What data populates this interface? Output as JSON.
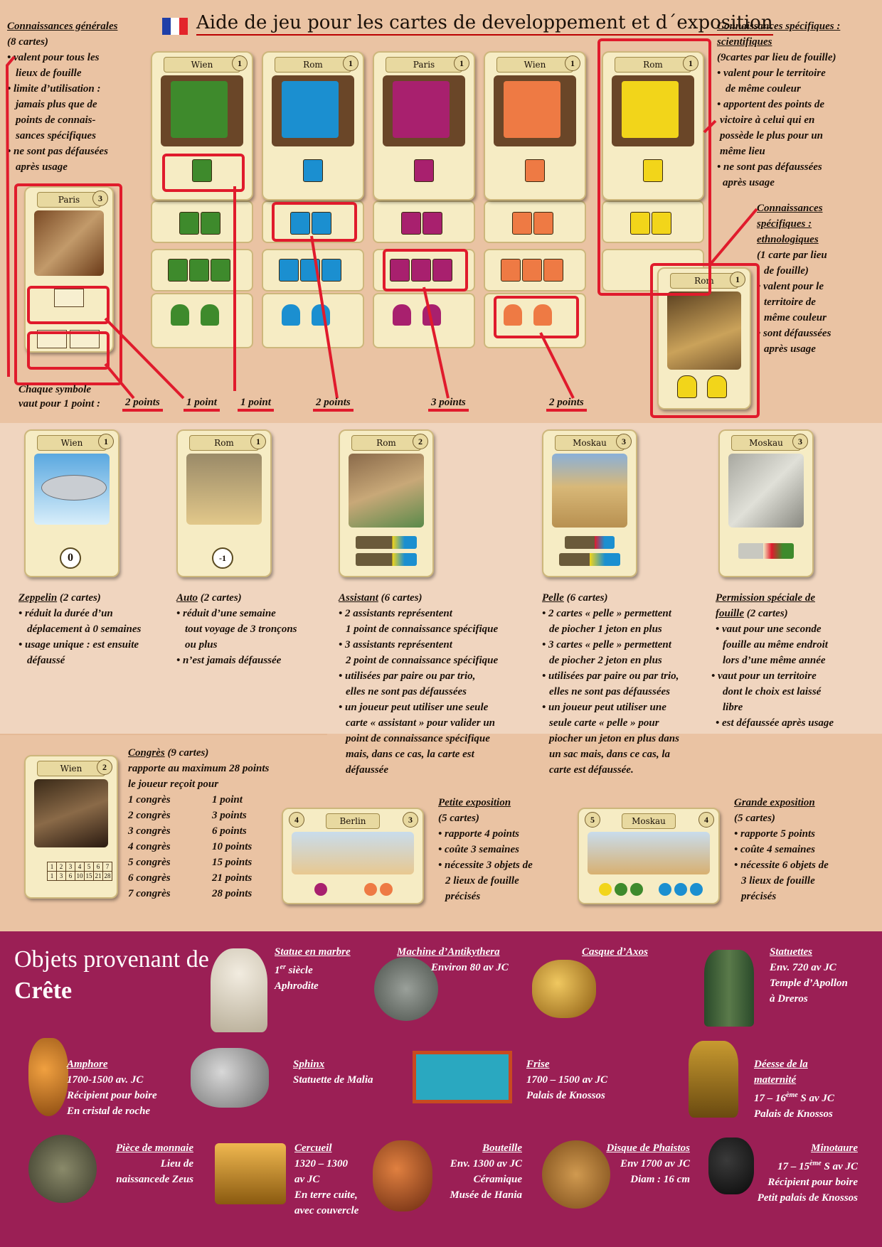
{
  "header": {
    "title": "Aide de jeu pour les cartes de developpement et d´exposition"
  },
  "general": {
    "title": "Connaissances générales",
    "count": "(8 cartes)",
    "lines": [
      "• valent pour tous les",
      "lieux de fouille",
      "• limite d’utilisation :",
      "jamais plus que de",
      "points de connais-",
      "sances spécifiques",
      "• ne sont pas défausées",
      "après usage"
    ]
  },
  "scientific": {
    "title": "Connaissances spécifiques :",
    "title2": "scientifiques",
    "lines": [
      "(9cartes par lieu de fouille)",
      "• valent pour le territoire",
      "de même couleur",
      "• apportent des points de",
      "victoire à celui qui en",
      "possède le plus pour un",
      "même lieu",
      "• ne sont pas défaussées",
      "après usage"
    ]
  },
  "ethno": {
    "lines": [
      "Connaissances",
      "spécifiques :",
      "ethnologiques",
      "(1 carte par lieu",
      "de fouille)",
      "• valent pour le",
      "territoire de",
      "même couleur",
      "• sont défaussées",
      "après usage"
    ]
  },
  "cards_top": {
    "paris": {
      "name": "Paris",
      "num": "3"
    },
    "c1": {
      "name": "Wien",
      "num": "1"
    },
    "c2": {
      "name": "Rom",
      "num": "1"
    },
    "c3": {
      "name": "Paris",
      "num": "1"
    },
    "c4": {
      "name": "Wien",
      "num": "1"
    },
    "c5": {
      "name": "Rom",
      "num": "1"
    },
    "ethno": {
      "name": "Rom",
      "num": "1"
    }
  },
  "points": {
    "label1": "Chaque symbole",
    "label2": "vaut pour 1 point :",
    "p1": "2 points",
    "p2": "1 point",
    "p3": "1 point",
    "p4": "2 points",
    "p5": "3 points",
    "p6": "2 points"
  },
  "mid_cards": {
    "zep": {
      "name": "Wien",
      "num": "1",
      "badge": "0"
    },
    "auto": {
      "name": "Rom",
      "num": "1",
      "badge": "-1"
    },
    "assist": {
      "name": "Rom",
      "num": "2"
    },
    "pelle": {
      "name": "Moskau",
      "num": "3"
    },
    "perm": {
      "name": "Moskau",
      "num": "3"
    }
  },
  "zeppelin": {
    "title": "Zeppelin",
    "count": " (2 cartes)",
    "lines": [
      "• réduit la durée d’un",
      "déplacement à 0 semaines",
      "• usage unique : est ensuite",
      "défaussé"
    ]
  },
  "auto": {
    "title": "Auto",
    "count": " (2 cartes)",
    "lines": [
      "• réduit d’une semaine",
      "tout voyage de 3 tronçons",
      "ou plus",
      "• n’est jamais défaussée"
    ]
  },
  "assistant": {
    "title": "Assistant",
    "count": " (6 cartes)",
    "lines": [
      "• 2 assistants représentent",
      "1 point de connaissance spécifique",
      "• 3 assistants représentent",
      "2 point de connaissance spécifique",
      "• utilisées par paire ou par trio,",
      "elles ne sont pas défaussées",
      "• un joueur peut utiliser une seule",
      "carte « assistant » pour valider un",
      "point de connaissance spécifique",
      "mais, dans ce cas, la carte est",
      "défaussée"
    ]
  },
  "pelle": {
    "title": "Pelle",
    "count": " (6 cartes)",
    "lines": [
      "• 2 cartes « pelle » permettent",
      "de piocher 1 jeton en plus",
      "• 3 cartes « pelle » permettent",
      "de piocher 2 jeton en plus",
      "• utilisées par paire ou par trio,",
      "elles ne sont pas défaussées",
      "• un joueur peut utiliser une",
      "seule carte « pelle » pour",
      "piocher  un jeton en plus dans",
      "un sac mais, dans ce cas, la",
      "carte est défaussée."
    ]
  },
  "permission": {
    "title": "Permission spéciale de",
    "title2": "fouille",
    "count": " (2 cartes)",
    "lines": [
      "• vaut pour une seconde",
      "fouille au même endroit",
      "lors d’une même année",
      "• vaut pour un territoire",
      "dont le choix est laissé",
      "libre",
      "• est défaussée après usage"
    ]
  },
  "congres": {
    "card": {
      "name": "Wien",
      "num": "2"
    },
    "title": "Congrès",
    "count": " (9 cartes)",
    "line1": "rapporte au maximum 28 points",
    "line2": "le joueur reçoit pour",
    "rows": [
      {
        "n": "1 congrès",
        "p": "1 point"
      },
      {
        "n": "2 congrès",
        "p": "3 points"
      },
      {
        "n": "3 congrès",
        "p": "6 points"
      },
      {
        "n": "4 congrès",
        "p": "10 points"
      },
      {
        "n": "5 congrès",
        "p": "15 points"
      },
      {
        "n": "6 congrès",
        "p": "21 points"
      },
      {
        "n": "7 congrès",
        "p": "28 points"
      }
    ],
    "track_top": [
      "1",
      "2",
      "3",
      "4",
      "5",
      "6",
      "7"
    ],
    "track_bot": [
      "1",
      "3",
      "6",
      "10",
      "15",
      "21",
      "28"
    ]
  },
  "petite": {
    "card": {
      "name": "Berlin",
      "num": "3",
      "left": "4"
    },
    "title": "Petite exposition",
    "lines": [
      "(5 cartes)",
      "• rapporte 4 points",
      "• coûte 3 semaines",
      "• nécessite 3 objets de",
      "2 lieux de fouille",
      "précisés"
    ]
  },
  "grande": {
    "card": {
      "name": "Moskau",
      "num": "4",
      "left": "5"
    },
    "title": "Grande exposition",
    "lines": [
      "(5 cartes)",
      "• rapporte 5 points",
      "• coûte 4 semaines",
      "• nécessite 6 objets de",
      "3 lieux de fouille",
      "précisés"
    ]
  },
  "objects": {
    "heading1": "Objets provenant de",
    "heading2": "Crête",
    "statue": {
      "title": "Statue en marbre",
      "l1a": "1",
      "l1sup": "er",
      "l1b": " siècle",
      "l2": "Aphrodite"
    },
    "antik": {
      "title": "Machine d’Antikythera",
      "l1": "Environ 80 av JC"
    },
    "casque": {
      "title": "Casque d’Axos"
    },
    "statuettes": {
      "title": "Statuettes",
      "lines": [
        "Env. 720 av JC",
        "Temple d’Apollon",
        "à Dreros"
      ]
    },
    "amphore": {
      "title": "Amphore",
      "lines": [
        "1700-1500 av. JC",
        "Récipient pour boire",
        "En cristal de roche"
      ]
    },
    "sphinx": {
      "title": "Sphinx",
      "lines": [
        "Statuette de Malia"
      ]
    },
    "frise": {
      "title": "Frise",
      "lines": [
        "1700 – 1500 av JC",
        "Palais de Knossos"
      ]
    },
    "deesse": {
      "title": "Déesse de la",
      "title2": "maternité",
      "l1a": "17 – 16",
      "l1sup": "ème",
      "l1b": " S av JC",
      "l2": "Palais de Knossos"
    },
    "piece": {
      "title": "Pièce de monnaie",
      "lines": [
        "Lieu de",
        "naissancede Zeus"
      ]
    },
    "cercueil": {
      "title": "Cercueil",
      "lines": [
        "1320 – 1300",
        "av JC",
        "En terre cuite,",
        "avec couvercle"
      ]
    },
    "bouteille": {
      "title": "Bouteille",
      "lines": [
        "Env. 1300 av JC",
        "Céramique",
        "Musée de Hania"
      ]
    },
    "disque": {
      "title": "Disque de Phaistos",
      "lines": [
        "Env 1700 av JC",
        "Diam : 16 cm"
      ]
    },
    "minotaure": {
      "title": "Minotaure",
      "l1a": "17 – 15",
      "l1sup": "ème",
      "l1b": " S av JC",
      "l2": "Récipient pour boire",
      "l3": "Petit palais de Knossos"
    }
  },
  "colors": {
    "green": "#3e8a2c",
    "blue": "#1b8fd0",
    "magenta": "#a8206e",
    "orange": "#ee7a44",
    "yellow": "#f2d51a",
    "red": "#e01b2c",
    "crimson": "#9b1f55"
  }
}
